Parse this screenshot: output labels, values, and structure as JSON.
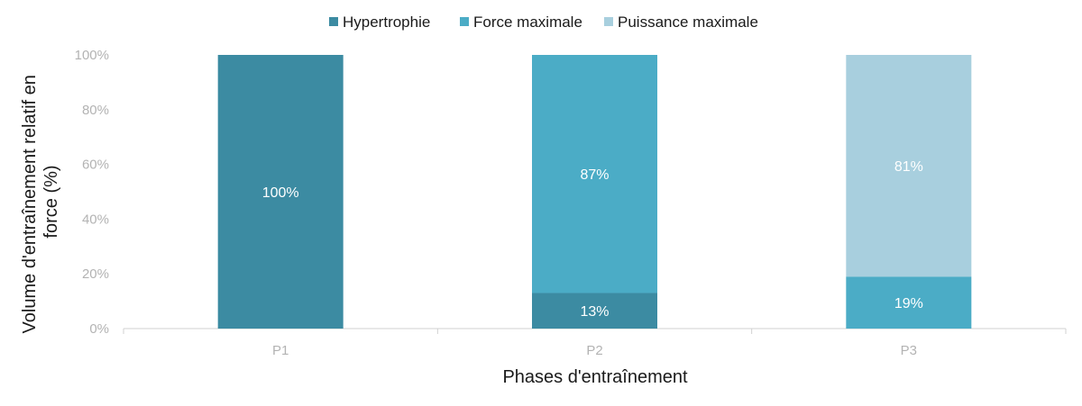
{
  "chart_data": {
    "type": "bar",
    "stacked": true,
    "categories": [
      "P1",
      "P2",
      "P3"
    ],
    "series": [
      {
        "name": "Hypertrophie",
        "color": "#3c8ba2",
        "values": [
          100,
          13,
          0
        ]
      },
      {
        "name": "Force maximale",
        "color": "#4bacc6",
        "values": [
          0,
          87,
          19
        ]
      },
      {
        "name": "Puissance maximale",
        "color": "#a8cfde",
        "values": [
          0,
          0,
          81
        ]
      }
    ],
    "xlabel": "Phases d'entraînement",
    "ylabel_lines": [
      "Volume d'entraînement relatif en",
      "force (%)"
    ],
    "ylim": [
      0,
      100
    ],
    "yticks": [
      "0%",
      "20%",
      "40%",
      "60%",
      "80%",
      "100%"
    ],
    "ytick_values": [
      0,
      20,
      40,
      60,
      80,
      100
    ],
    "value_suffix": "%",
    "grid": false,
    "legend_position": "top-center"
  }
}
